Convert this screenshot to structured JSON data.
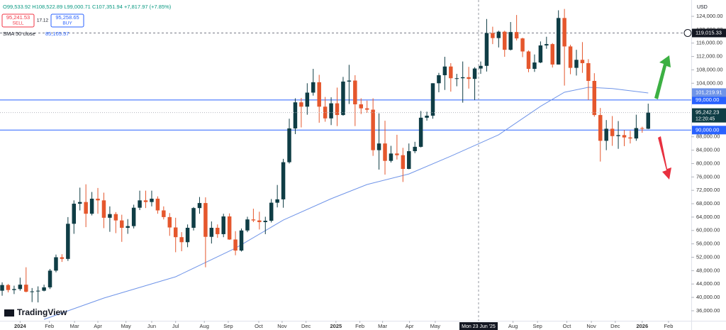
{
  "chart_data": {
    "type": "candlestick",
    "header": {
      "ohlc": "O99,533.92 H108,522.89 L99,000.71 C107,351.94 +7,817.97 (+7.85%)",
      "sell_price": "95,241.53",
      "sell": "SELL",
      "spread": "17.12",
      "buy_price": "95,258.65",
      "buy": "BUY",
      "indicator": "SMA 50 close",
      "indicator_value": "85,105.57"
    },
    "currency": "USD",
    "brand": "TradingView",
    "crosshair_label": "Mon 23 Jun '25",
    "up_color": "#0f3d45",
    "down_color": "#e5572d",
    "candles": [
      [
        42000,
        44500,
        40500,
        43700
      ],
      [
        43700,
        44000,
        41500,
        42200
      ],
      [
        42200,
        43500,
        41000,
        42500
      ],
      [
        42500,
        45900,
        42000,
        43800
      ],
      [
        43800,
        49000,
        41500,
        41700
      ],
      [
        41700,
        42800,
        38600,
        41800
      ],
      [
        41800,
        43300,
        38500,
        42000
      ],
      [
        42000,
        43800,
        41800,
        43000
      ],
      [
        43000,
        48500,
        42500,
        48000
      ],
      [
        48000,
        52800,
        47500,
        52000
      ],
      [
        52000,
        52900,
        50600,
        51500
      ],
      [
        51500,
        64000,
        50900,
        62000
      ],
      [
        62000,
        69000,
        59000,
        68000
      ],
      [
        68000,
        72800,
        66000,
        68500
      ],
      [
        68500,
        73800,
        61000,
        65000
      ],
      [
        65000,
        71500,
        64500,
        69500
      ],
      [
        69500,
        72700,
        65000,
        69000
      ],
      [
        69000,
        71300,
        60700,
        63800
      ],
      [
        63800,
        67200,
        59600,
        64900
      ],
      [
        64900,
        65500,
        59200,
        63000
      ],
      [
        63000,
        64700,
        56600,
        60800
      ],
      [
        60800,
        63400,
        59000,
        61300
      ],
      [
        61300,
        67700,
        60600,
        66800
      ],
      [
        66800,
        71900,
        66100,
        69000
      ],
      [
        69000,
        71900,
        66700,
        68500
      ],
      [
        68500,
        71900,
        67200,
        69500
      ],
      [
        69500,
        70200,
        65000,
        66000
      ],
      [
        66000,
        67200,
        63300,
        64000
      ],
      [
        64000,
        65200,
        58400,
        60900
      ],
      [
        60900,
        63800,
        53500,
        58000
      ],
      [
        58000,
        59500,
        53800,
        56500
      ],
      [
        56500,
        61800,
        55000,
        60800
      ],
      [
        60800,
        67000,
        60000,
        66700
      ],
      [
        66700,
        70000,
        65000,
        68200
      ],
      [
        68200,
        69900,
        49000,
        58100
      ],
      [
        58100,
        62700,
        56100,
        60800
      ],
      [
        60800,
        61800,
        57800,
        58900
      ],
      [
        58900,
        65000,
        58000,
        64200
      ],
      [
        64200,
        65100,
        57200,
        57300
      ],
      [
        57300,
        59800,
        52600,
        54000
      ],
      [
        54000,
        60600,
        53700,
        60000
      ],
      [
        60000,
        64100,
        59500,
        63300
      ],
      [
        63300,
        66500,
        62500,
        63000
      ],
      [
        63000,
        65600,
        60300,
        62500
      ],
      [
        62500,
        64100,
        58900,
        62900
      ],
      [
        62900,
        69400,
        62400,
        68300
      ],
      [
        68300,
        73600,
        66900,
        69300
      ],
      [
        69300,
        81400,
        66800,
        80400
      ],
      [
        80400,
        93400,
        80000,
        90500
      ],
      [
        90500,
        99500,
        88800,
        98300
      ],
      [
        98300,
        99600,
        90800,
        97000
      ],
      [
        97000,
        104000,
        94600,
        101200
      ],
      [
        101200,
        108300,
        100300,
        104300
      ],
      [
        104300,
        106500,
        92200,
        97000
      ],
      [
        97000,
        99900,
        92500,
        93500
      ],
      [
        93500,
        99800,
        91500,
        98000
      ],
      [
        98000,
        102700,
        91200,
        94500
      ],
      [
        94500,
        105900,
        94300,
        104500
      ],
      [
        104500,
        109500,
        97800,
        104800
      ],
      [
        104800,
        106400,
        91200,
        97700
      ],
      [
        97700,
        99500,
        94800,
        96500
      ],
      [
        96500,
        98800,
        95200,
        96100
      ],
      [
        96100,
        99500,
        82300,
        84000
      ],
      [
        84000,
        95000,
        78200,
        86000
      ],
      [
        86000,
        92800,
        76700,
        80800
      ],
      [
        80800,
        85300,
        80300,
        83000
      ],
      [
        83000,
        88600,
        81200,
        82500
      ],
      [
        82500,
        84700,
        74500,
        78400
      ],
      [
        78400,
        86000,
        78300,
        83700
      ],
      [
        83700,
        86500,
        83100,
        85000
      ],
      [
        85000,
        95700,
        84800,
        93700
      ],
      [
        93700,
        95500,
        92800,
        94300
      ],
      [
        94300,
        104000,
        93400,
        104000
      ],
      [
        104000,
        107100,
        101300,
        106400
      ],
      [
        106400,
        111900,
        102000,
        109000
      ],
      [
        109000,
        110000,
        101500,
        105500
      ],
      [
        105500,
        106800,
        103100,
        105500
      ],
      [
        105500,
        110500,
        98200,
        105800
      ],
      [
        105800,
        108900,
        102400,
        105300
      ],
      [
        105300,
        108800,
        99000,
        108400
      ],
      [
        108400,
        110500,
        106800,
        109200
      ],
      [
        109200,
        123200,
        107500,
        119000
      ],
      [
        119000,
        120900,
        115700,
        117500
      ],
      [
        117500,
        119700,
        114700,
        119400
      ],
      [
        119400,
        119700,
        111900,
        114000
      ],
      [
        114000,
        122300,
        113800,
        119300
      ],
      [
        119300,
        124400,
        116800,
        117400
      ],
      [
        117400,
        117600,
        111800,
        113500
      ],
      [
        113500,
        113800,
        107300,
        108300
      ],
      [
        108300,
        112600,
        107400,
        110200
      ],
      [
        110200,
        116500,
        110000,
        115300
      ],
      [
        115300,
        117900,
        114300,
        115700
      ],
      [
        115700,
        116000,
        108700,
        109600
      ],
      [
        109600,
        125800,
        109600,
        123500
      ],
      [
        123500,
        126200,
        103300,
        115000
      ],
      [
        115000,
        115500,
        106700,
        108600
      ],
      [
        108600,
        114000,
        106300,
        111000
      ],
      [
        111000,
        116300,
        107100,
        110000
      ],
      [
        110000,
        111200,
        99000,
        104700
      ],
      [
        104700,
        107000,
        94000,
        94500
      ],
      [
        94500,
        96600,
        80600,
        86800
      ],
      [
        86800,
        93000,
        84000,
        90400
      ],
      [
        90400,
        94200,
        85300,
        88200
      ],
      [
        88200,
        92700,
        84400,
        88500
      ],
      [
        88500,
        90000,
        85200,
        87800
      ],
      [
        87800,
        89800,
        86000,
        87500
      ],
      [
        87500,
        94600,
        86800,
        90600
      ],
      [
        90600,
        91000,
        89200,
        90400
      ],
      [
        90400,
        97900,
        90300,
        95242.23
      ]
    ],
    "sma": {
      "color": "#6f94e8",
      "x": [
        7,
        17,
        29,
        39,
        47,
        55,
        61,
        68,
        75,
        83,
        90,
        94,
        98,
        102,
        108
      ],
      "values": [
        33440,
        39800,
        46160,
        54700,
        63100,
        69500,
        73740,
        76900,
        82200,
        88600,
        97100,
        101300,
        102800,
        102400,
        101100
      ]
    },
    "xlim": [
      -0.36,
      115.2
    ],
    "ylim": [
      33013,
      128878
    ],
    "xticks": [
      {
        "value": 3,
        "label": "2024"
      },
      {
        "value": 7.9,
        "label": "Feb"
      },
      {
        "value": 12.1,
        "label": "Mar"
      },
      {
        "value": 16,
        "label": "Apr"
      },
      {
        "value": 20.7,
        "label": "May"
      },
      {
        "value": 25,
        "label": "Jun"
      },
      {
        "value": 29,
        "label": "Jul"
      },
      {
        "value": 33.8,
        "label": "Aug"
      },
      {
        "value": 37.8,
        "label": "Sep"
      },
      {
        "value": 42.9,
        "label": "Oct"
      },
      {
        "value": 46.8,
        "label": "Nov"
      },
      {
        "value": 50.8,
        "label": "Dec"
      },
      {
        "value": 55.8,
        "label": "2025"
      },
      {
        "value": 59.8,
        "label": "Feb"
      },
      {
        "value": 63.6,
        "label": "Mar"
      },
      {
        "value": 68.1,
        "label": "Apr"
      },
      {
        "value": 72.4,
        "label": "May"
      },
      {
        "value": 85.4,
        "label": "Aug"
      },
      {
        "value": 89.5,
        "label": "Sep"
      },
      {
        "value": 94.4,
        "label": "Oct"
      },
      {
        "value": 98.5,
        "label": "Nov"
      },
      {
        "value": 102.5,
        "label": "Dec"
      },
      {
        "value": 107,
        "label": "2026"
      },
      {
        "value": 111.4,
        "label": "Feb"
      }
    ],
    "yticks": [
      {
        "value": 124000,
        "label": "124,000.00"
      },
      {
        "value": 120000,
        "label": "120,000.00"
      },
      {
        "value": 116000,
        "label": "116,000.00"
      },
      {
        "value": 112000,
        "label": "112,000.00"
      },
      {
        "value": 108000,
        "label": "108,000.00"
      },
      {
        "value": 104000,
        "label": "104,000.00"
      },
      {
        "value": 88000,
        "label": "88,000.00"
      },
      {
        "value": 84000,
        "label": "84,000.00"
      },
      {
        "value": 80000,
        "label": "80,000.00"
      },
      {
        "value": 76000,
        "label": "76,000.00"
      },
      {
        "value": 72000,
        "label": "72,000.00"
      },
      {
        "value": 68000,
        "label": "68,000.00"
      },
      {
        "value": 64000,
        "label": "64,000.00"
      },
      {
        "value": 60000,
        "label": "60,000.00"
      },
      {
        "value": 56000,
        "label": "56,000.00"
      },
      {
        "value": 52000,
        "label": "52,000.00"
      },
      {
        "value": 48000,
        "label": "48,000.00"
      },
      {
        "value": 44000,
        "label": "44,000.00"
      },
      {
        "value": 40000,
        "label": "40,000.00"
      },
      {
        "value": 36000,
        "label": "36,000.00"
      }
    ],
    "price_lines": [
      {
        "value": 99000,
        "label": "99,000.00",
        "color": "#2962ff"
      },
      {
        "value": 90000,
        "label": "90,000.00",
        "color": "#2962ff"
      }
    ],
    "high_line": {
      "value": 119015.33,
      "label": "119,015.33"
    },
    "sma_label": {
      "value": 101219.91,
      "label": "101,219.91"
    },
    "last_price": {
      "value": 95242.23,
      "label": "95,242.23",
      "countdown": "12:20:45"
    }
  }
}
